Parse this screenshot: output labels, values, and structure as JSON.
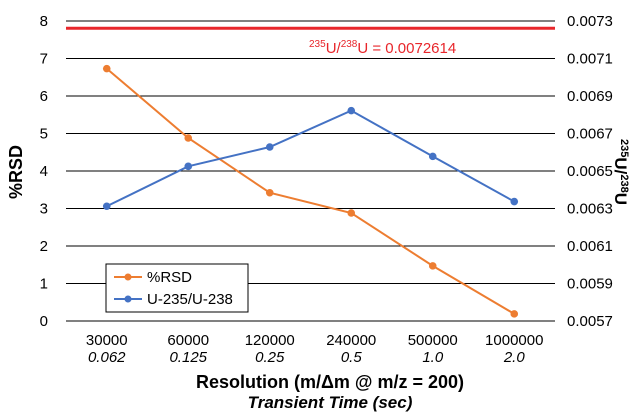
{
  "chart_data": {
    "type": "line",
    "categories": [
      "30000",
      "60000",
      "120000",
      "240000",
      "500000",
      "1000000"
    ],
    "categories_secondary": [
      "0.062",
      "0.125",
      "0.25",
      "0.5",
      "1.0",
      "2.0"
    ],
    "xlabel": "Resolution (m/Δm @ m/z = 200)",
    "xlabel_secondary": "Transient Time (sec)",
    "ylabel": "%RSD",
    "ylabel_right": {
      "sup1": "235",
      "base1": "U/",
      "sup2": "238",
      "base2": "U"
    },
    "ylim": [
      0,
      8
    ],
    "y_ticks": [
      "0",
      "1",
      "2",
      "3",
      "4",
      "5",
      "6",
      "7",
      "8"
    ],
    "y2lim": [
      0.0057,
      0.0073
    ],
    "y2_ticks": [
      "0.0057",
      "0.0059",
      "0.0061",
      "0.0063",
      "0.0065",
      "0.0067",
      "0.0069",
      "0.0071",
      "0.0073"
    ],
    "grid": true,
    "legend_position": "bottom-left",
    "series": [
      {
        "name": "%RSD",
        "axis": "left",
        "color": "#ED7D31",
        "values": [
          6.73,
          4.88,
          3.42,
          2.88,
          1.47,
          0.19
        ]
      },
      {
        "name": "U-235/U-238",
        "axis": "right",
        "color": "#4472C4",
        "values": [
          0.006312,
          0.006525,
          0.006628,
          0.006822,
          0.006578,
          0.006337
        ]
      }
    ],
    "reference_line": {
      "axis": "right",
      "value": 0.0072614,
      "color": "#E8262B",
      "label": {
        "sup1": "235",
        "base1": "U/",
        "sup2": "238",
        "base2": "U = 0.0072614"
      }
    }
  }
}
